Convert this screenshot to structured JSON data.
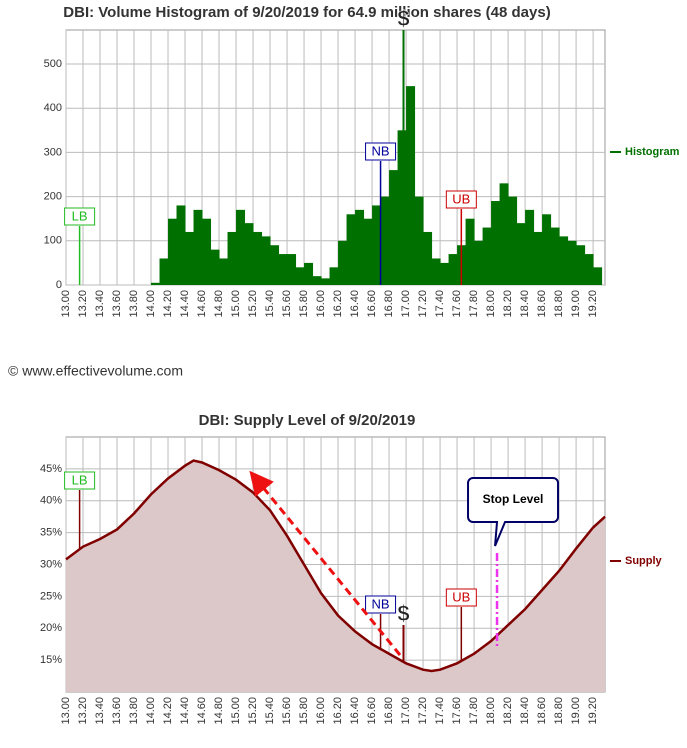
{
  "chart_data": [
    {
      "type": "histogram",
      "title": "DBI: Volume Histogram of 9/20/2019 for 64.9 million shares (48 days)",
      "name": "Histogram",
      "color": "#007000",
      "bins": [
        13.0,
        13.1,
        13.2,
        13.3,
        13.4,
        13.5,
        13.6,
        13.7,
        13.8,
        13.9,
        14.0,
        14.1,
        14.2,
        14.3,
        14.4,
        14.5,
        14.6,
        14.7,
        14.8,
        14.9,
        15.0,
        15.1,
        15.2,
        15.3,
        15.4,
        15.5,
        15.6,
        15.7,
        15.8,
        15.9,
        16.0,
        16.1,
        16.2,
        16.3,
        16.4,
        16.5,
        16.6,
        16.7,
        16.8,
        16.9,
        17.0,
        17.1,
        17.2,
        17.3,
        17.4,
        17.5,
        17.6,
        17.7,
        17.8,
        17.9,
        18.0,
        18.1,
        18.2,
        18.3,
        18.4,
        18.5,
        18.6,
        18.7,
        18.8,
        18.9,
        19.0,
        19.1,
        19.2,
        19.3
      ],
      "values": [
        0,
        0,
        0,
        0,
        0,
        0,
        0,
        0,
        0,
        0,
        5,
        60,
        150,
        180,
        120,
        170,
        150,
        80,
        60,
        120,
        170,
        140,
        120,
        110,
        90,
        70,
        70,
        40,
        50,
        20,
        15,
        40,
        100,
        160,
        170,
        150,
        180,
        200,
        260,
        350,
        450,
        200,
        120,
        60,
        50,
        70,
        90,
        150,
        100,
        130,
        190,
        230,
        200,
        140,
        170,
        120,
        160,
        130,
        110,
        100,
        90,
        70,
        40
      ],
      "xlim": [
        13.0,
        19.34
      ],
      "ylim": [
        0,
        577
      ],
      "xticks": [
        {
          "value": 13.0,
          "label": "13.00"
        },
        {
          "value": 13.2,
          "label": "13.20"
        },
        {
          "value": 13.4,
          "label": "13.40"
        },
        {
          "value": 13.6,
          "label": "13.60"
        },
        {
          "value": 13.8,
          "label": "13.80"
        },
        {
          "value": 14.0,
          "label": "14.00"
        },
        {
          "value": 14.2,
          "label": "14.20"
        },
        {
          "value": 14.4,
          "label": "14.40"
        },
        {
          "value": 14.6,
          "label": "14.60"
        },
        {
          "value": 14.8,
          "label": "14.80"
        },
        {
          "value": 15.0,
          "label": "15.00"
        },
        {
          "value": 15.2,
          "label": "15.20"
        },
        {
          "value": 15.4,
          "label": "15.40"
        },
        {
          "value": 15.6,
          "label": "15.60"
        },
        {
          "value": 15.8,
          "label": "15.80"
        },
        {
          "value": 16.0,
          "label": "16.00"
        },
        {
          "value": 16.2,
          "label": "16.20"
        },
        {
          "value": 16.4,
          "label": "16.40"
        },
        {
          "value": 16.6,
          "label": "16.60"
        },
        {
          "value": 16.8,
          "label": "16.80"
        },
        {
          "value": 17.0,
          "label": "17.00"
        },
        {
          "value": 17.2,
          "label": "17.20"
        },
        {
          "value": 17.4,
          "label": "17.40"
        },
        {
          "value": 17.6,
          "label": "17.60"
        },
        {
          "value": 17.8,
          "label": "17.80"
        },
        {
          "value": 18.0,
          "label": "18.00"
        },
        {
          "value": 18.2,
          "label": "18.20"
        },
        {
          "value": 18.4,
          "label": "18.40"
        },
        {
          "value": 18.6,
          "label": "18.60"
        },
        {
          "value": 18.8,
          "label": "18.80"
        },
        {
          "value": 19.0,
          "label": "19.00"
        },
        {
          "value": 19.2,
          "label": "19.20"
        }
      ],
      "yticks": [
        0,
        100,
        200,
        300,
        400,
        500
      ],
      "grid": true,
      "annotations": [
        {
          "text": "LB",
          "x": 13.16,
          "color": "#22bb22"
        },
        {
          "text": "NB",
          "x": 16.7,
          "color": "#000099"
        },
        {
          "text": "UB",
          "x": 17.65,
          "color": "#cc0000"
        },
        {
          "text": "$",
          "x": 16.97,
          "color": "#000000"
        }
      ]
    },
    {
      "type": "area",
      "title": "DBI: Supply Level of 9/20/2019",
      "name": "Supply",
      "color": "#800000",
      "fill": "#dcc8c8",
      "x": [
        13.0,
        13.2,
        13.4,
        13.6,
        13.8,
        14.0,
        14.2,
        14.4,
        14.5,
        14.6,
        14.8,
        15.0,
        15.2,
        15.4,
        15.6,
        15.8,
        16.0,
        16.2,
        16.4,
        16.6,
        16.8,
        17.0,
        17.2,
        17.3,
        17.4,
        17.6,
        17.8,
        18.0,
        18.2,
        18.4,
        18.6,
        18.8,
        19.0,
        19.2,
        19.34
      ],
      "values": [
        30.8,
        32.8,
        34.0,
        35.5,
        38.0,
        41.0,
        43.5,
        45.5,
        46.3,
        46.0,
        44.8,
        43.3,
        41.3,
        38.5,
        34.5,
        30.0,
        25.5,
        22.0,
        19.5,
        17.5,
        16.0,
        14.5,
        13.5,
        13.3,
        13.5,
        14.5,
        16.0,
        18.0,
        20.5,
        23.0,
        26.0,
        29.0,
        32.5,
        35.8,
        37.5
      ],
      "xlim": [
        13.0,
        19.34
      ],
      "ylim": [
        10,
        50
      ],
      "xticks": [
        {
          "value": 13.0,
          "label": "13.00"
        },
        {
          "value": 13.2,
          "label": "13.20"
        },
        {
          "value": 13.4,
          "label": "13.40"
        },
        {
          "value": 13.6,
          "label": "13.60"
        },
        {
          "value": 13.8,
          "label": "13.80"
        },
        {
          "value": 14.0,
          "label": "14.00"
        },
        {
          "value": 14.2,
          "label": "14.20"
        },
        {
          "value": 14.4,
          "label": "14.40"
        },
        {
          "value": 14.6,
          "label": "14.60"
        },
        {
          "value": 14.8,
          "label": "14.80"
        },
        {
          "value": 15.0,
          "label": "15.00"
        },
        {
          "value": 15.2,
          "label": "15.20"
        },
        {
          "value": 15.4,
          "label": "15.40"
        },
        {
          "value": 15.6,
          "label": "15.60"
        },
        {
          "value": 15.8,
          "label": "15.80"
        },
        {
          "value": 16.0,
          "label": "16.00"
        },
        {
          "value": 16.2,
          "label": "16.20"
        },
        {
          "value": 16.4,
          "label": "16.40"
        },
        {
          "value": 16.6,
          "label": "16.60"
        },
        {
          "value": 16.8,
          "label": "16.80"
        },
        {
          "value": 17.0,
          "label": "17.00"
        },
        {
          "value": 17.2,
          "label": "17.20"
        },
        {
          "value": 17.4,
          "label": "17.40"
        },
        {
          "value": 17.6,
          "label": "17.60"
        },
        {
          "value": 17.8,
          "label": "17.80"
        },
        {
          "value": 18.0,
          "label": "18.00"
        },
        {
          "value": 18.2,
          "label": "18.20"
        },
        {
          "value": 18.4,
          "label": "18.40"
        },
        {
          "value": 18.6,
          "label": "18.60"
        },
        {
          "value": 18.8,
          "label": "18.80"
        },
        {
          "value": 19.0,
          "label": "19.00"
        },
        {
          "value": 19.2,
          "label": "19.20"
        }
      ],
      "yticks": [
        {
          "value": 15,
          "label": "15%"
        },
        {
          "value": 20,
          "label": "20%"
        },
        {
          "value": 25,
          "label": "25%"
        },
        {
          "value": 30,
          "label": "30%"
        },
        {
          "value": 35,
          "label": "35%"
        },
        {
          "value": 40,
          "label": "40%"
        },
        {
          "value": 45,
          "label": "45%"
        }
      ],
      "grid": true,
      "annotations": [
        {
          "text": "LB",
          "x": 13.16,
          "color": "#22bb22"
        },
        {
          "text": "NB",
          "x": 16.7,
          "color": "#000099"
        },
        {
          "text": "UB",
          "x": 17.65,
          "color": "#cc0000"
        },
        {
          "text": "$",
          "x": 16.97,
          "color": "#000000"
        }
      ],
      "stop_level": {
        "label": "Stop Level",
        "x": 18.07,
        "color": "#ee33ee"
      }
    }
  ],
  "copyright": "© www.effectivevolume.com"
}
